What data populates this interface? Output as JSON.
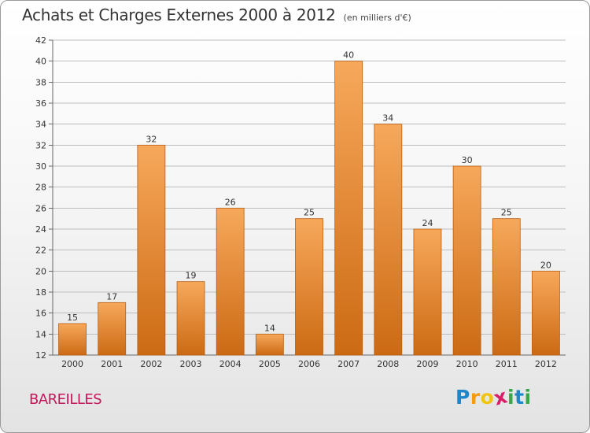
{
  "header": {
    "title": "Achats et Charges Externes 2000 à 2012",
    "unit": "(en milliers d'€)"
  },
  "footer": {
    "town": "BAREILLES",
    "logo": {
      "text": "Proxiti",
      "letters": [
        "P",
        "r",
        "o",
        "x",
        "i",
        "t",
        "i"
      ],
      "colors": [
        "#1f86c9",
        "#f39c12",
        "#f1c40f",
        "#d91e6a",
        "#3aa64a",
        "#1f86c9",
        "#3aa64a"
      ]
    }
  },
  "colors": {
    "bar_top": "#f7a85a",
    "bar_bottom": "#cc6a14",
    "bar_edge": "#b85e10",
    "grid": "#bdbdbd"
  },
  "chart_data": {
    "type": "bar",
    "title": "Achats et Charges Externes 2000 à 2012",
    "subtitle": "(en milliers d'€)",
    "categories": [
      "2000",
      "2001",
      "2002",
      "2003",
      "2004",
      "2005",
      "2006",
      "2007",
      "2008",
      "2009",
      "2010",
      "2011",
      "2012"
    ],
    "values": [
      15,
      17,
      32,
      19,
      26,
      14,
      25,
      40,
      34,
      24,
      30,
      25,
      20
    ],
    "ylim": [
      12,
      42
    ],
    "yticks": [
      12,
      14,
      16,
      18,
      20,
      22,
      24,
      26,
      28,
      30,
      32,
      34,
      36,
      38,
      40,
      42
    ],
    "grid": "horizontal",
    "data_labels": true
  }
}
